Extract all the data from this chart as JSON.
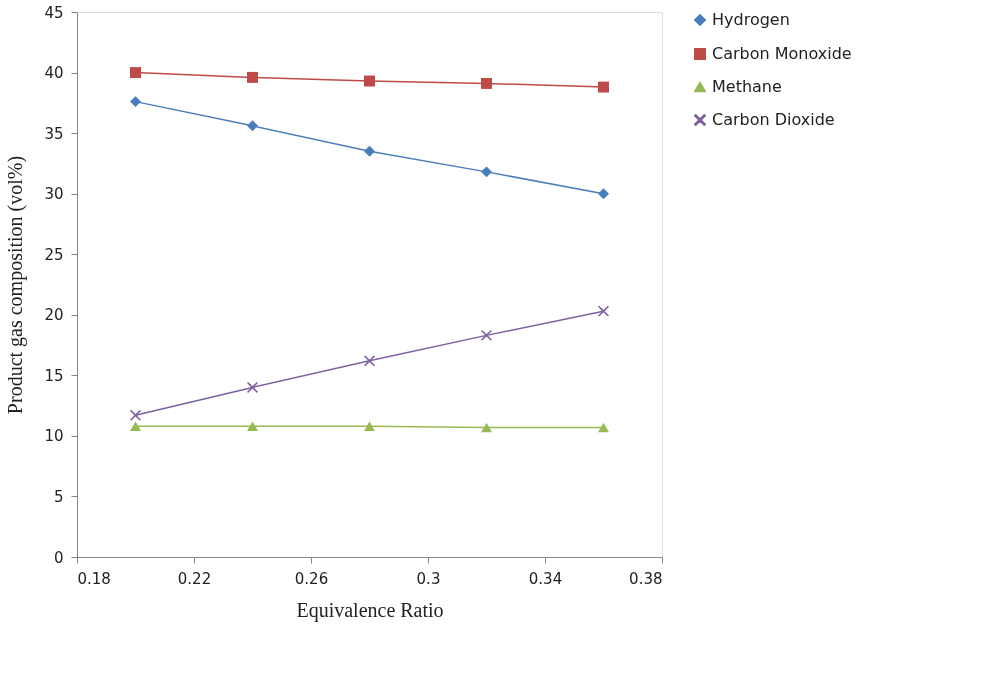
{
  "chart_data": {
    "type": "line",
    "xlabel": "Equivalence Ratio",
    "ylabel": "Product gas composition  (vol%)",
    "x": [
      0.2,
      0.24,
      0.28,
      0.32,
      0.36
    ],
    "series": [
      {
        "name": "Hydrogen",
        "color": "#4a7ebb",
        "marker": "diamond",
        "values": [
          37.6,
          35.6,
          33.5,
          31.8,
          30.0
        ]
      },
      {
        "name": "Carbon Monoxide",
        "color": "#be4b48",
        "marker": "square",
        "values": [
          40.0,
          39.6,
          39.3,
          39.1,
          38.8
        ]
      },
      {
        "name": "Methane",
        "color": "#98b954",
        "marker": "triangle",
        "values": [
          10.8,
          10.8,
          10.8,
          10.7,
          10.7
        ]
      },
      {
        "name": "Carbon Dioxide",
        "color": "#7d60a0",
        "marker": "cross",
        "values": [
          11.7,
          14.0,
          16.2,
          18.3,
          20.3
        ]
      }
    ],
    "xlim": [
      0.18,
      0.38
    ],
    "xticks": [
      0.18,
      0.22,
      0.26,
      0.3,
      0.34,
      0.38
    ],
    "ylim": [
      0,
      45
    ],
    "yticks": [
      0,
      5,
      10,
      15,
      20,
      25,
      30,
      35,
      40,
      45
    ],
    "grid": false,
    "legend": "right",
    "line_style": "solid"
  }
}
